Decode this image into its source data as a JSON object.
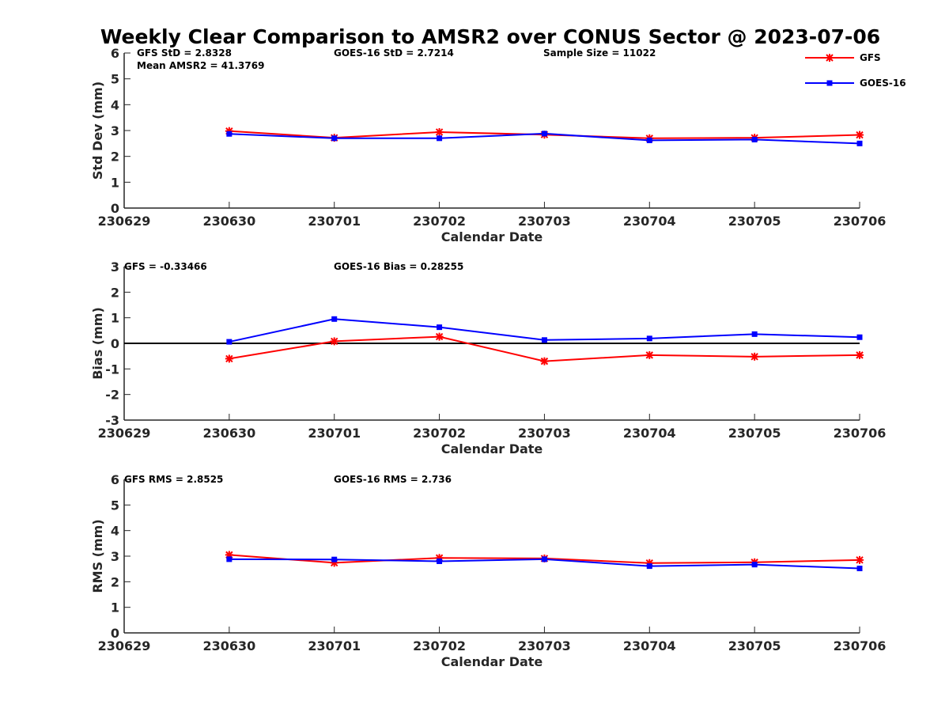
{
  "chart_data": {
    "type": "line",
    "title": "Weekly Clear Comparison to AMSR2 over CONUS Sector @ 2023-07-06",
    "legend": {
      "placement": "top-right",
      "entries": [
        {
          "name": "GFS",
          "color": "#ff0000",
          "marker": "asterisk"
        },
        {
          "name": "GOES-16",
          "color": "#0000ff",
          "marker": "square"
        }
      ]
    },
    "panels": [
      {
        "id": "std",
        "xlabel": "Calendar Date",
        "ylabel": "Std Dev (mm)",
        "xlim": [
          230629,
          230706
        ],
        "ylim": [
          0,
          6
        ],
        "yticks": [
          "0",
          "1",
          "2",
          "3",
          "4",
          "5",
          "6"
        ],
        "xticks": [
          "230629",
          "230630",
          "230701",
          "230702",
          "230703",
          "230704",
          "230705",
          "230706"
        ],
        "zero_line": false,
        "annotations": [
          {
            "text": "GFS StD = 2.8328"
          },
          {
            "text": "Mean AMSR2 = 41.3769"
          },
          {
            "text": "GOES-16 StD = 2.7214"
          },
          {
            "text": "Sample Size = 11022"
          }
        ],
        "series": [
          {
            "name": "GFS",
            "values": [
              2.98,
              2.72,
              2.94,
              2.84,
              2.7,
              2.72,
              2.83
            ]
          },
          {
            "name": "GOES-16",
            "values": [
              2.87,
              2.7,
              2.7,
              2.88,
              2.62,
              2.65,
              2.5
            ]
          }
        ]
      },
      {
        "id": "bias",
        "xlabel": "Calendar Date",
        "ylabel": "Bias (mm)",
        "xlim": [
          230629,
          230706
        ],
        "ylim": [
          -3,
          3
        ],
        "yticks": [
          "-3",
          "-2",
          "-1",
          "0",
          "1",
          "2",
          "3"
        ],
        "xticks": [
          "230629",
          "230630",
          "230701",
          "230702",
          "230703",
          "230704",
          "230705",
          "230706"
        ],
        "zero_line": true,
        "annotations": [
          {
            "text": "GFS = -0.33466"
          },
          {
            "text": "GOES-16 Bias  = 0.28255"
          }
        ],
        "series": [
          {
            "name": "GFS",
            "values": [
              -0.6,
              0.08,
              0.26,
              -0.7,
              -0.46,
              -0.52,
              -0.46
            ]
          },
          {
            "name": "GOES-16",
            "values": [
              0.06,
              0.95,
              0.63,
              0.13,
              0.19,
              0.36,
              0.24
            ]
          }
        ]
      },
      {
        "id": "rms",
        "xlabel": "Calendar Date",
        "ylabel": "RMS (mm)",
        "xlim": [
          230629,
          230706
        ],
        "ylim": [
          0,
          6
        ],
        "yticks": [
          "0",
          "1",
          "2",
          "3",
          "4",
          "5",
          "6"
        ],
        "xticks": [
          "230629",
          "230630",
          "230701",
          "230702",
          "230703",
          "230704",
          "230705",
          "230706"
        ],
        "zero_line": false,
        "annotations": [
          {
            "text": "GFS RMS = 2.8525"
          },
          {
            "text": "GOES-16 RMS = 2.736"
          }
        ],
        "series": [
          {
            "name": "GFS",
            "values": [
              3.05,
              2.74,
              2.93,
              2.91,
              2.73,
              2.76,
              2.85
            ]
          },
          {
            "name": "GOES-16",
            "values": [
              2.88,
              2.87,
              2.8,
              2.88,
              2.61,
              2.67,
              2.52
            ]
          }
        ]
      }
    ],
    "x_dates": [
      "230630",
      "230701",
      "230702",
      "230703",
      "230704",
      "230705",
      "230706"
    ]
  }
}
